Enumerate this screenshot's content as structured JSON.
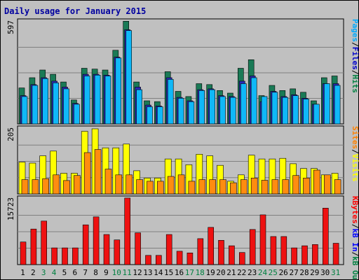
{
  "chart_data": {
    "type": "bar",
    "title": "Daily usage for January 2015",
    "x": [
      "1",
      "2",
      "3",
      "4",
      "5",
      "6",
      "7",
      "8",
      "9",
      "10",
      "11",
      "12",
      "13",
      "14",
      "15",
      "16",
      "17",
      "18",
      "19",
      "20",
      "21",
      "22",
      "23",
      "24",
      "25",
      "26",
      "27",
      "28",
      "29",
      "30",
      "31"
    ],
    "weekend_days": [
      "3",
      "4",
      "10",
      "11",
      "17",
      "18",
      "24",
      "25",
      "31"
    ],
    "panels": [
      {
        "id": "hits",
        "ymax_label": "597",
        "ylim": [
          0,
          597
        ],
        "legend": [
          {
            "name": "Pages",
            "color": "#00aaff"
          },
          {
            "name": "Files",
            "color": "#0000cc"
          },
          {
            "name": "Hits",
            "color": "#008040"
          }
        ],
        "series": [
          {
            "name": "Hits",
            "color": "#1a7a56",
            "values": [
              210,
              270,
              315,
              290,
              245,
              140,
              325,
              320,
              315,
              430,
              600,
              245,
              135,
              130,
              305,
              190,
              160,
              235,
              230,
              195,
              180,
              325,
              375,
              165,
              225,
              195,
              205,
              185,
              135,
              270,
              280
            ]
          },
          {
            "name": "Files",
            "color": "#2a2ab8",
            "values": [
              165,
              230,
              270,
              250,
              215,
              120,
              290,
              290,
              285,
              390,
              550,
              215,
              110,
              105,
              270,
              155,
              135,
              200,
              205,
              165,
              160,
              250,
              280,
              130,
              190,
              160,
              170,
              150,
              115,
              235,
              235
            ]
          },
          {
            "name": "Pages",
            "color": "#10b8f8",
            "values": [
              160,
              225,
              265,
              240,
              205,
              115,
              280,
              285,
              280,
              385,
              545,
              200,
              100,
              100,
              260,
              150,
              130,
              195,
              200,
              160,
              155,
              235,
              270,
              160,
              185,
              155,
              165,
              145,
              115,
              235,
              225
            ]
          }
        ]
      },
      {
        "id": "visits",
        "ymax_label": "205",
        "ylim": [
          0,
          205
        ],
        "legend": [
          {
            "name": "Sites",
            "color": "#ff8000"
          },
          {
            "name": "Visits",
            "color": "#ffff00"
          }
        ],
        "series": [
          {
            "name": "Visits",
            "color": "#ffff00",
            "values": [
              100,
              97,
              120,
              135,
              65,
              65,
              197,
              205,
              145,
              145,
              157,
              73,
              50,
              50,
              110,
              110,
              92,
              125,
              120,
              90,
              40,
              60,
              122,
              110,
              110,
              112,
              95,
              80,
              80,
              60,
              65
            ]
          },
          {
            "name": "Sites",
            "color": "#ff8c10",
            "values": [
              45,
              45,
              48,
              60,
              42,
              58,
              130,
              140,
              78,
              60,
              60,
              45,
              40,
              40,
              55,
              60,
              40,
              45,
              45,
              45,
              35,
              45,
              50,
              43,
              45,
              45,
              58,
              50,
              75,
              60,
              45
            ]
          }
        ]
      },
      {
        "id": "kbytes",
        "ymax_label": "15723",
        "ylim": [
          0,
          15723
        ],
        "legend": [
          {
            "name": "KBytes",
            "color": "#ff0000"
          },
          {
            "name": "kB In",
            "color": "#0000ff"
          },
          {
            "name": "kB Out",
            "color": "#008040"
          }
        ],
        "series": [
          {
            "name": "KBytes",
            "color": "#ee1111",
            "values": [
              5400,
              8500,
              10400,
              4000,
              4000,
              4000,
              9500,
              11400,
              7200,
              5900,
              15900,
              7600,
              2200,
              2200,
              7200,
              3200,
              2800,
              6200,
              8900,
              5800,
              4500,
              2900,
              8400,
              11900,
              6700,
              6700,
              4000,
              4500,
              4800,
              13500,
              5100
            ]
          }
        ]
      }
    ],
    "grid": true
  }
}
